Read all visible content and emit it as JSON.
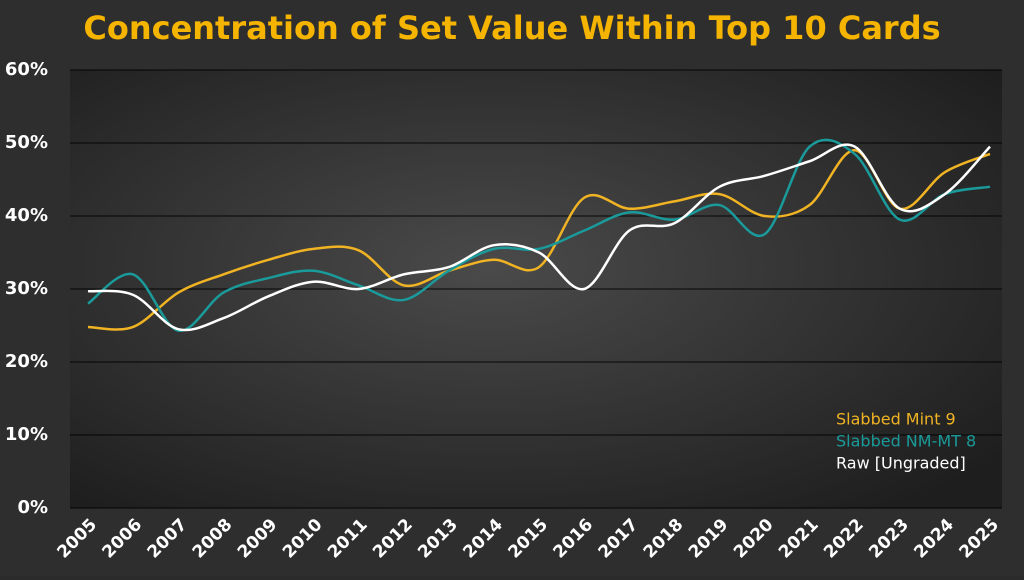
{
  "chart_data": {
    "type": "line",
    "title": "Concentration of Set Value Within Top 10 Cards",
    "categories": [
      "2005",
      "2006",
      "2007",
      "2008",
      "2009",
      "2010",
      "2011",
      "2012",
      "2013",
      "2014",
      "2015",
      "2016",
      "2017",
      "2018",
      "2019",
      "2020",
      "2021",
      "2022",
      "2023",
      "2024",
      "2025"
    ],
    "series": [
      {
        "name": "Slabbed Mint 9",
        "color": "#f0b323",
        "values": [
          24.8,
          24.8,
          29.5,
          32,
          34,
          35.5,
          35.3,
          30.5,
          32.5,
          34,
          33,
          42.5,
          41,
          42,
          43,
          40,
          41.5,
          49,
          41,
          46,
          48.5
        ]
      },
      {
        "name": "Slabbed NM-MT 8",
        "color": "#1a9a9a",
        "values": [
          28,
          32,
          24.3,
          29.5,
          31.5,
          32.5,
          30.5,
          28.5,
          32.5,
          35.5,
          35.5,
          38,
          40.5,
          39.5,
          41.5,
          37.5,
          49.5,
          48.5,
          39.5,
          43,
          44
        ]
      },
      {
        "name": "Raw [Ungraded]",
        "color": "#ffffff",
        "values": [
          29.7,
          29.2,
          24.5,
          26,
          29,
          31,
          30,
          32,
          33,
          36,
          35,
          30,
          38,
          39,
          44,
          45.5,
          47.5,
          49.5,
          41,
          43,
          49.5
        ]
      }
    ],
    "ylim": [
      0,
      60
    ],
    "yticks": [
      {
        "value": 0,
        "label": "0%"
      },
      {
        "value": 10,
        "label": "10%"
      },
      {
        "value": 20,
        "label": "20%"
      },
      {
        "value": 30,
        "label": "30%"
      },
      {
        "value": 40,
        "label": "40%"
      },
      {
        "value": 50,
        "label": "50%"
      },
      {
        "value": 60,
        "label": "60%"
      }
    ],
    "grid": true,
    "smooth": true,
    "legend": "lower right"
  }
}
